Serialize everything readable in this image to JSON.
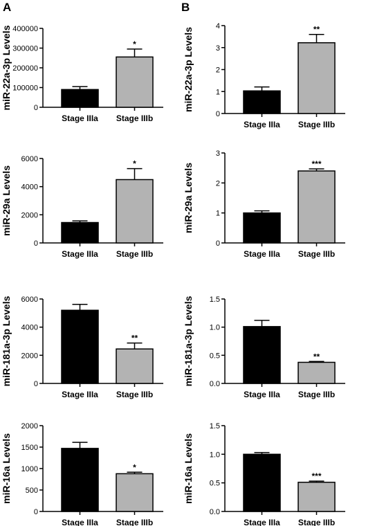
{
  "panels": [
    {
      "letter": "A"
    },
    {
      "letter": "B"
    }
  ],
  "colors": {
    "stage_iiia": "#000000",
    "stage_iiib": "#b3b3b3",
    "axis": "#000000"
  },
  "chart_data": [
    {
      "type": "bar",
      "panel": "A",
      "ylabel": "miR-22a-3p Levels",
      "categories": [
        "Stage IIIa",
        "Stage IIIb"
      ],
      "values": [
        90000,
        255000
      ],
      "errors": [
        15000,
        40000
      ],
      "significance": [
        "",
        "*"
      ],
      "ylim": [
        0,
        400000
      ],
      "yticks": [
        0,
        100000,
        200000,
        300000,
        400000
      ],
      "ytick_labels": [
        "0",
        "100000",
        "200000",
        "300000",
        "400000"
      ]
    },
    {
      "type": "bar",
      "panel": "B",
      "ylabel": "miR-22a-3p Levels",
      "categories": [
        "Stage IIIa",
        "Stage IIIb"
      ],
      "values": [
        1.03,
        3.22
      ],
      "errors": [
        0.18,
        0.38
      ],
      "significance": [
        "",
        "**"
      ],
      "ylim": [
        0,
        4
      ],
      "yticks": [
        0,
        1,
        2,
        3,
        4
      ],
      "ytick_labels": [
        "0",
        "1",
        "2",
        "3",
        "4"
      ]
    },
    {
      "type": "bar",
      "panel": "A",
      "ylabel": "miR-29a Levels",
      "categories": [
        "Stage IIIa",
        "Stage IIIb"
      ],
      "values": [
        1450,
        4500
      ],
      "errors": [
        120,
        780
      ],
      "significance": [
        "",
        "*"
      ],
      "ylim": [
        0,
        6000
      ],
      "yticks": [
        0,
        2000,
        4000,
        6000
      ],
      "ytick_labels": [
        "0",
        "2000",
        "4000",
        "6000"
      ]
    },
    {
      "type": "bar",
      "panel": "B",
      "ylabel": "miR-29a Levels",
      "categories": [
        "Stage IIIa",
        "Stage IIIb"
      ],
      "values": [
        1.0,
        2.4
      ],
      "errors": [
        0.07,
        0.07
      ],
      "significance": [
        "",
        "***"
      ],
      "ylim": [
        0,
        3
      ],
      "yticks": [
        0,
        1,
        2,
        3
      ],
      "ytick_labels": [
        "0",
        "1",
        "2",
        "3"
      ]
    },
    {
      "type": "bar",
      "panel": "A",
      "ylabel": "miR-181a-3p Levels",
      "categories": [
        "Stage IIIa",
        "Stage IIIb"
      ],
      "values": [
        5200,
        2450
      ],
      "errors": [
        420,
        420
      ],
      "significance": [
        "",
        "**"
      ],
      "ylim": [
        0,
        6000
      ],
      "yticks": [
        0,
        2000,
        4000,
        6000
      ],
      "ytick_labels": [
        "0",
        "2000",
        "4000",
        "6000"
      ]
    },
    {
      "type": "bar",
      "panel": "B",
      "ylabel": "miR-181a-3p Levels",
      "categories": [
        "Stage IIIa",
        "Stage IIIb"
      ],
      "values": [
        1.01,
        0.375
      ],
      "errors": [
        0.11,
        0.015
      ],
      "significance": [
        "",
        "**"
      ],
      "ylim": [
        0,
        1.5
      ],
      "yticks": [
        0,
        0.5,
        1.0,
        1.5
      ],
      "ytick_labels": [
        "0.0",
        "0.5",
        "1.0",
        "1.5"
      ]
    },
    {
      "type": "bar",
      "panel": "A",
      "ylabel": "miR-16a Levels",
      "categories": [
        "Stage IIIa",
        "Stage IIIb"
      ],
      "values": [
        1470,
        880
      ],
      "errors": [
        140,
        35
      ],
      "significance": [
        "",
        "*"
      ],
      "ylim": [
        0,
        2000
      ],
      "yticks": [
        0,
        500,
        1000,
        1500,
        2000
      ],
      "ytick_labels": [
        "0",
        "500",
        "1000",
        "1500",
        "2000"
      ]
    },
    {
      "type": "bar",
      "panel": "B",
      "ylabel": "miR-16a Levels",
      "categories": [
        "Stage IIIa",
        "Stage IIIb"
      ],
      "values": [
        1.0,
        0.51
      ],
      "errors": [
        0.03,
        0.02
      ],
      "significance": [
        "",
        "***"
      ],
      "ylim": [
        0,
        1.5
      ],
      "yticks": [
        0,
        0.5,
        1.0,
        1.5
      ],
      "ytick_labels": [
        "0.0",
        "0.5",
        "1.0",
        "1.5"
      ]
    }
  ]
}
